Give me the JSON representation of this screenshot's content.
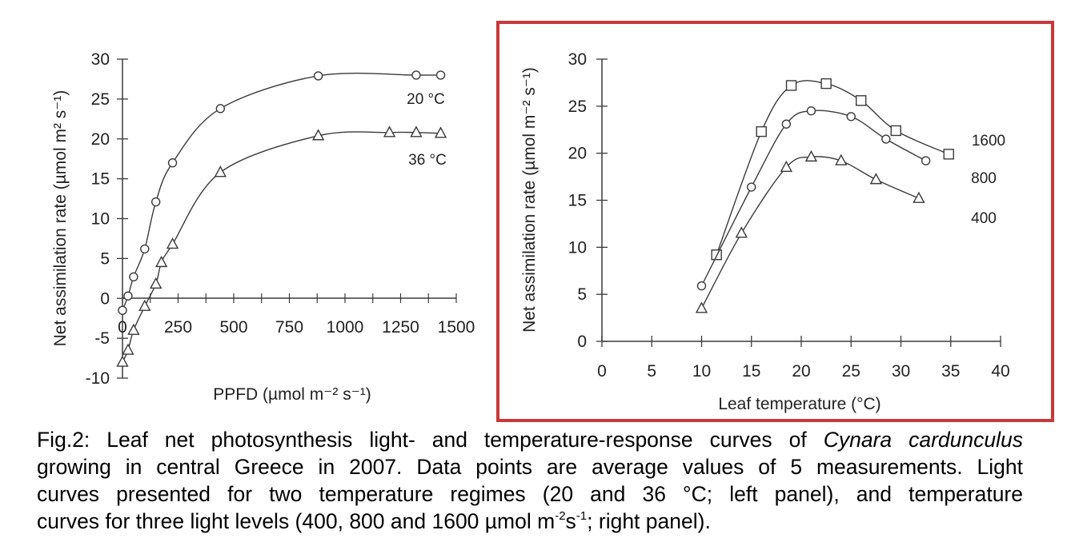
{
  "chart_data": [
    {
      "type": "line",
      "title": "",
      "xlabel": "PPFD (µmol m⁻² s⁻¹)",
      "ylabel": "Net assimilation rate (µmol m² s⁻¹)",
      "xlim": [
        0,
        1500
      ],
      "ylim": [
        -10,
        30
      ],
      "xticks": [
        "0",
        "250",
        "500",
        "750",
        "1000",
        "1250",
        "1500"
      ],
      "yticks": [
        "-10",
        "-5",
        "0",
        "5",
        "10",
        "15",
        "20",
        "25",
        "30"
      ],
      "grid": false,
      "legend": "inline labels at right end of curves",
      "series": [
        {
          "name": "20 °C",
          "marker": "circle",
          "x": [
            0,
            25,
            50,
            100,
            150,
            225,
            440,
            880,
            1320,
            1430
          ],
          "y": [
            -1.5,
            0.3,
            2.7,
            6.2,
            12.1,
            17.0,
            23.8,
            27.9,
            28.0,
            28.0
          ]
        },
        {
          "name": "36 °C",
          "marker": "triangle",
          "x": [
            0,
            25,
            50,
            100,
            150,
            175,
            225,
            440,
            880,
            1200,
            1320,
            1430
          ],
          "y": [
            -8.0,
            -6.5,
            -4.0,
            -1.0,
            1.8,
            4.5,
            6.8,
            15.8,
            20.4,
            20.8,
            20.8,
            20.7
          ]
        }
      ]
    },
    {
      "type": "line",
      "title": "",
      "xlabel": "Leaf temperature (°C)",
      "ylabel": "Net assimilation rate (µmol m⁻² s⁻¹)",
      "xlim": [
        0,
        40
      ],
      "ylim": [
        0,
        30
      ],
      "xticks": [
        "0",
        "5",
        "10",
        "15",
        "20",
        "25",
        "30",
        "35",
        "40"
      ],
      "yticks": [
        "0",
        "5",
        "10",
        "15",
        "20",
        "25",
        "30"
      ],
      "grid": false,
      "legend": "inline labels at right end of curves",
      "series": [
        {
          "name": "1600",
          "marker": "square",
          "x": [
            11.5,
            16,
            19,
            22.5,
            26,
            29.5,
            34.8
          ],
          "y": [
            9.2,
            22.3,
            27.2,
            27.4,
            25.6,
            22.4,
            19.9
          ]
        },
        {
          "name": "800",
          "marker": "circle",
          "x": [
            10,
            15,
            18.5,
            21,
            25,
            28.5,
            32.5
          ],
          "y": [
            5.9,
            16.4,
            23.1,
            24.5,
            23.9,
            21.5,
            19.2
          ]
        },
        {
          "name": "400",
          "marker": "triangle",
          "x": [
            10,
            14,
            18.5,
            21,
            24,
            27.5,
            31.8
          ],
          "y": [
            3.5,
            11.5,
            18.5,
            19.6,
            19.2,
            17.2,
            15.2
          ]
        }
      ]
    }
  ],
  "highlight_color": "#c8383a",
  "caption": {
    "line1_a": "Fig.2: Leaf net photosynthesis light- and temperature-response curves of ",
    "line1_italic": "Cynara cardunculus",
    "line2": "growing in central Greece in 2007. Data points are average values of 5 measurements. Light",
    "line3": "curves presented for two temperature regimes (20 and 36 °C; left panel), and temperature",
    "line4_a": "curves for three light levels (400, 800 and 1600 µmol m",
    "line4_sup1": "-2",
    "line4_b": "s",
    "line4_sup2": "-1",
    "line4_c": "; right panel)."
  }
}
